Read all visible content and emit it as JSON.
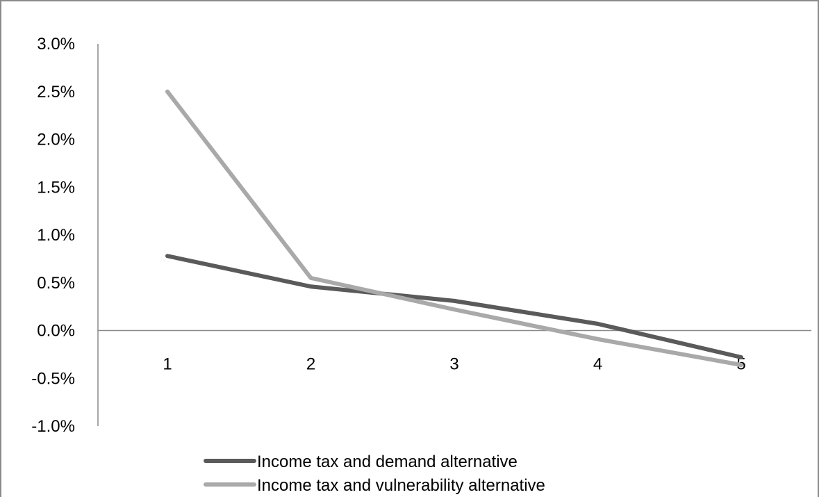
{
  "chart_data": {
    "type": "line",
    "title": "",
    "xlabel": "",
    "ylabel": "",
    "categories": [
      "1",
      "2",
      "3",
      "4",
      "5"
    ],
    "y_ticks": [
      "3.0%",
      "2.5%",
      "2.0%",
      "1.5%",
      "1.0%",
      "0.5%",
      "0.0%",
      "-0.5%",
      "-1.0%"
    ],
    "ylim": [
      -1.0,
      3.0
    ],
    "y_unit": "%",
    "grid": false,
    "legend_position": "bottom",
    "series": [
      {
        "name": "Income tax and demand alternative",
        "color": "#5a5a5a",
        "values": [
          0.78,
          0.46,
          0.31,
          0.07,
          -0.28
        ]
      },
      {
        "name": "Income tax and vulnerability alternative",
        "color": "#a9a9a9",
        "values": [
          2.5,
          0.55,
          0.22,
          -0.09,
          -0.36
        ]
      }
    ]
  }
}
